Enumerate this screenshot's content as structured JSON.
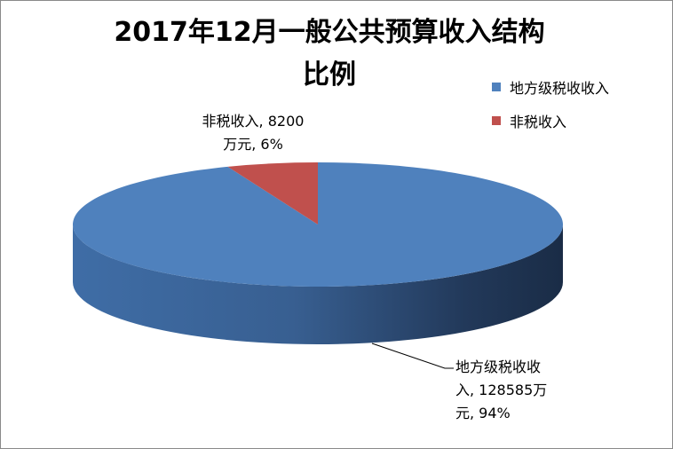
{
  "chart_data": {
    "type": "pie",
    "title_line1": "2017年12月一般公共预算收入结构",
    "title_line2": "比例",
    "legend_position": "right",
    "slices": [
      {
        "name": "地方级税收收入",
        "value": 128585,
        "percent": 94,
        "color": "#4F81BD",
        "label_lines": [
          "地方级税收收",
          "入, 128585万",
          "元, 94%"
        ]
      },
      {
        "name": "非税收入",
        "value": 8200,
        "percent": 6,
        "color": "#C0504D",
        "label_lines": [
          "非税收入, 8200",
          "万元, 6%"
        ]
      }
    ]
  }
}
